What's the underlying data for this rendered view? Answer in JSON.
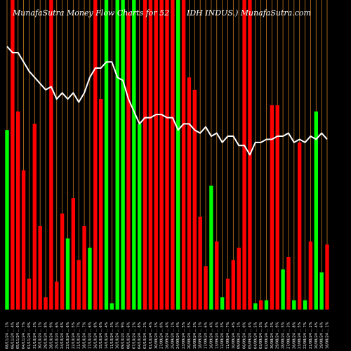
{
  "title": {
    "left": "MunafaSutra  Money Flow  Charts for 52",
    "right": "IDH INDUS.) MunafaSutra.com"
  },
  "colors": {
    "background": "#000000",
    "up": "#00ff00",
    "down": "#ff0000",
    "grid": "#c87a1e",
    "line": "#ffffff",
    "text": "#ffffff"
  },
  "chart_data": {
    "type": "bar",
    "ylim": [
      0,
      100
    ],
    "categories": [
      "08/11/24 ... 1%",
      "06/11/24 ... 4%",
      "05/11/24 ... 6%",
      "04/11/24 ... 7%",
      "01/11/24 ... 0%",
      "31/10/24 ... 3%",
      "30/10/24 ... 1%",
      "29/10/24 ... 8%",
      "28/10/24 ... 9%",
      "25/10/24 ... 6%",
      "24/10/24 ... 6%",
      "23/10/24 ... 6%",
      "22/10/24 ... 5%",
      "21/10/24 ... 7%",
      "18/10/24 ... 7%",
      "17/10/24 ... 6%",
      "16/10/24 ... 8%",
      "15/10/24 ... 6%",
      "14/10/24 ... 4%",
      "11/10/24 ... 3%",
      "10/10/24 ... 3%",
      "09/10/24 ... 9%",
      "08/10/24 ... 6%",
      "07/10/24 ... 2%",
      "04/10/24 ... 8%",
      "03/10/24 ... 2%",
      "01/10/24 ... 4%",
      "30/09/24 ... 3%",
      "27/09/24 ... 0%",
      "26/09/24 ... 4%",
      "25/09/24 ... 1%",
      "24/09/24 ... 4%",
      "23/09/24 ... 5%",
      "20/09/24 ... 5%",
      "19/09/24 ... 3%",
      "18/09/24 ... 1%",
      "17/09/24 ... 6%",
      "16/09/24 ... 4%",
      "13/09/24 ... 4%",
      "12/09/24 ... 3%",
      "11/09/24 ... 7%",
      "10/09/24 ... 4%",
      "09/09/24 ... 1%",
      "06/09/24 ... 0%",
      "05/09/24 ... 4%",
      "04/09/24 ... 5%",
      "03/09/24 ... 3%",
      "02/09/24 ... 9%",
      "30/08/24 ... 3%",
      "29/08/24 ... 9%",
      "28/08/24 ... 5%",
      "27/08/24 ... 3%",
      "26/08/24 ... 8%",
      "23/08/24 ... 5%",
      "22/08/24 ... 7%",
      "21/08/24 ... 2%",
      "20/08/24 ... 4%",
      "19/08/24 ... 6%",
      "16/08/24 ... 1%"
    ],
    "series": [
      {
        "values": [
          58,
          100,
          64,
          45,
          10,
          60,
          27,
          4,
          100,
          9,
          31,
          23,
          36,
          16,
          27,
          20,
          100,
          68,
          100,
          2,
          100,
          100,
          96,
          100,
          60,
          100,
          100,
          100,
          100,
          100,
          100,
          100,
          100,
          75,
          71,
          30,
          14,
          40,
          22,
          4,
          10,
          16,
          20,
          100,
          100,
          2,
          3,
          3,
          66,
          66,
          13,
          17,
          3,
          54,
          3,
          22,
          64,
          12,
          21
        ],
        "directions": [
          "up",
          "down",
          "down",
          "down",
          "down",
          "down",
          "down",
          "down",
          "down",
          "down",
          "down",
          "up",
          "down",
          "down",
          "down",
          "up",
          "down",
          "down",
          "up",
          "up",
          "up",
          "up",
          "down",
          "up",
          "up",
          "down",
          "down",
          "down",
          "down",
          "down",
          "down",
          "up",
          "down",
          "down",
          "down",
          "down",
          "down",
          "up",
          "down",
          "up",
          "down",
          "down",
          "down",
          "down",
          "down",
          "up",
          "down",
          "up",
          "down",
          "down",
          "up",
          "down",
          "up",
          "down",
          "up",
          "down",
          "up",
          "up",
          "down"
        ]
      },
      {
        "values": [
          85,
          83,
          83,
          80,
          77,
          75,
          73,
          71,
          72,
          68,
          70,
          68,
          70,
          67,
          70,
          75,
          78,
          78,
          80,
          80,
          75,
          74,
          68,
          64,
          60,
          62,
          62,
          63,
          63,
          62,
          62,
          58,
          60,
          60,
          58,
          57,
          59,
          56,
          57,
          54,
          56,
          56,
          53,
          53,
          50,
          54,
          54,
          55,
          55,
          56,
          56,
          57,
          54,
          55,
          54,
          56,
          55,
          57,
          55
        ]
      }
    ]
  }
}
